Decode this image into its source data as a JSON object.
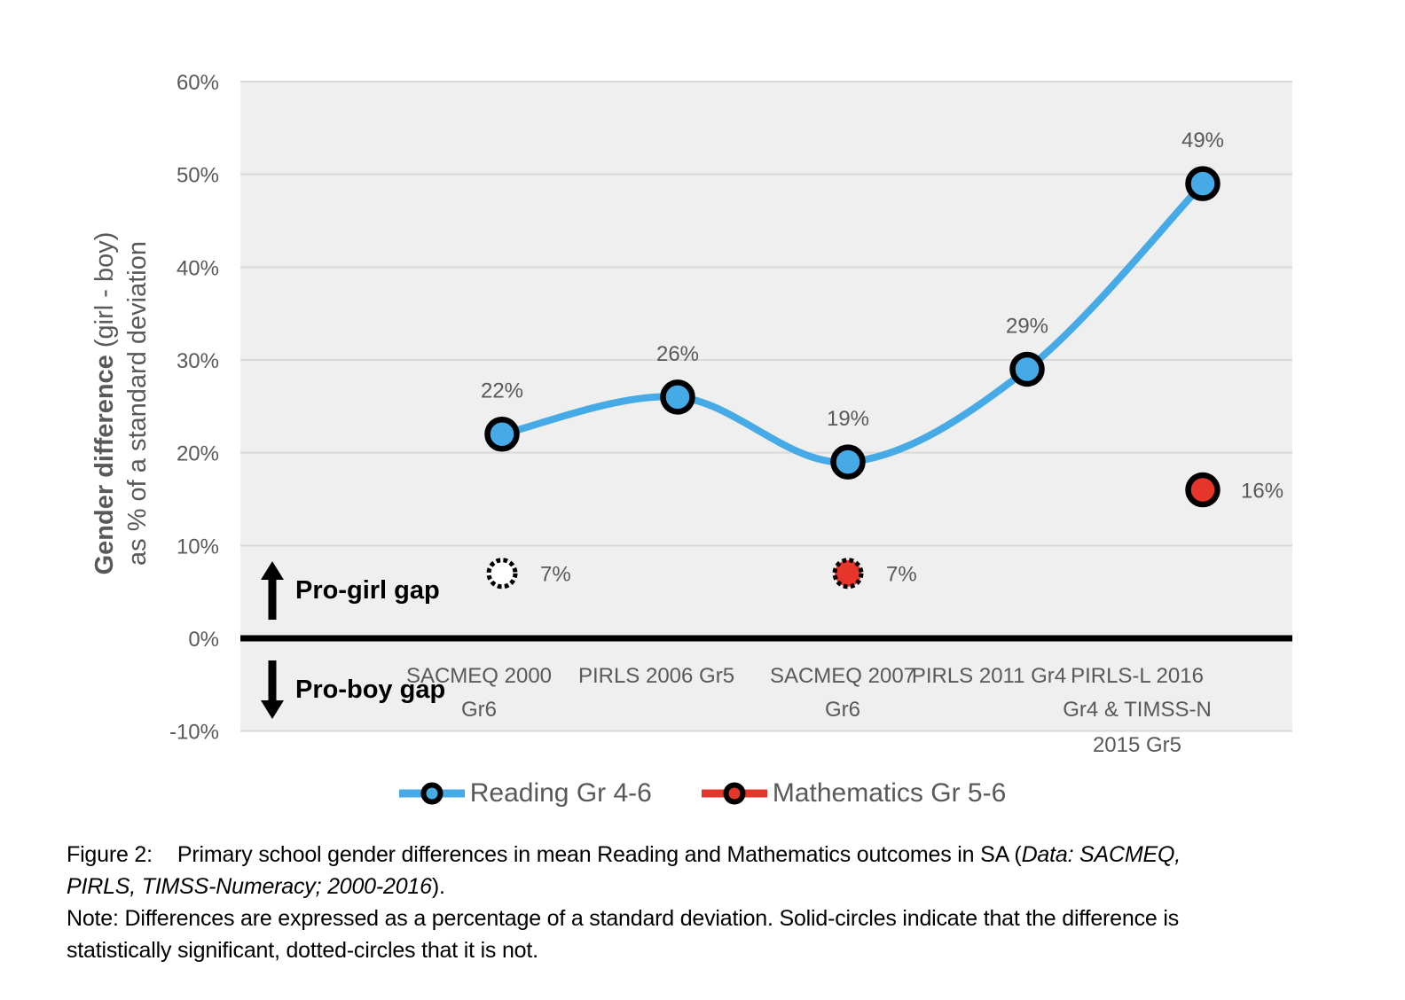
{
  "chart_data": {
    "type": "line",
    "y_axis": {
      "title_bold": "Gender difference",
      "title_normal": " (girl - boy)",
      "title_line2": "as % of a standard deviation",
      "ticks": [
        {
          "label": "60%",
          "value": 60
        },
        {
          "label": "50%",
          "value": 50
        },
        {
          "label": "40%",
          "value": 40
        },
        {
          "label": "30%",
          "value": 30
        },
        {
          "label": "20%",
          "value": 20
        },
        {
          "label": "10%",
          "value": 10
        },
        {
          "label": "0%",
          "value": 0
        },
        {
          "label": "-10%",
          "value": -10
        }
      ],
      "ylim": [
        -10,
        60
      ],
      "grid": true
    },
    "categories": [
      {
        "lines": [
          "SACMEQ 2000",
          "Gr6"
        ]
      },
      {
        "lines": [
          "PIRLS 2006 Gr5"
        ]
      },
      {
        "lines": [
          "SACMEQ 2007",
          "Gr6"
        ]
      },
      {
        "lines": [
          "PIRLS 2011 Gr4"
        ]
      },
      {
        "lines": [
          "PIRLS-L 2016",
          "Gr4 & TIMSS-N",
          "2015 Gr5"
        ]
      }
    ],
    "series": [
      {
        "name": "Reading Gr 4-6",
        "color": "#45aae5",
        "style": "smooth-line",
        "values": [
          22,
          26,
          19,
          29,
          49
        ],
        "data_labels": [
          "22%",
          "26%",
          "19%",
          "29%",
          "49%"
        ],
        "marker": "solid"
      },
      {
        "name": "Mathematics Gr 5-6",
        "color": "#e6352a",
        "style": "points",
        "points": [
          {
            "category_index": 0,
            "value": 7,
            "label": "7%",
            "marker": "dotted",
            "fill": "#ffffff"
          },
          {
            "category_index": 2,
            "value": 7,
            "label": "7%",
            "marker": "dotted",
            "fill": "#e6352a"
          },
          {
            "category_index": 4,
            "value": 16,
            "label": "16%",
            "marker": "solid",
            "fill": "#e6352a"
          }
        ]
      }
    ],
    "annotations": {
      "up": "Pro-girl gap",
      "down": "Pro-boy gap"
    },
    "zero_line": true,
    "legend_position": "bottom"
  },
  "caption": {
    "figure_label": "Figure 2:",
    "line1_main": "Primary school gender differences in mean Reading and Mathematics outcomes in SA (",
    "line1_italic": "Data: SACMEQ,",
    "line2_italic": "PIRLS, TIMSS-Numeracy; 2000-2016",
    "line2_close": ").",
    "note_line1": "Note: Differences are expressed as a percentage of a standard deviation. Solid-circles indicate that the difference is",
    "note_line2": "statistically significant, dotted-circles that it is not."
  }
}
